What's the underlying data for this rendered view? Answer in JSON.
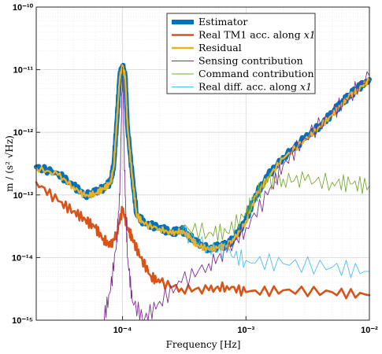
{
  "chart_data": {
    "type": "line",
    "xlabel": "Frequency [Hz]",
    "ylabel": "m / (s² √Hz)",
    "xscale": "log",
    "yscale": "log",
    "xlim": [
      2e-05,
      0.01
    ],
    "ylim": [
      1e-15,
      1e-10
    ],
    "x_tick_labels": [
      "10⁻⁴",
      "10⁻³",
      "10⁻²"
    ],
    "x_tick_values": [
      0.0001,
      0.001,
      0.01
    ],
    "y_tick_labels": [
      "10⁻¹⁵",
      "10⁻¹⁴",
      "10⁻¹³",
      "10⁻¹²",
      "10⁻¹¹",
      "10⁻¹⁰"
    ],
    "y_tick_values": [
      1e-15,
      1e-14,
      1e-13,
      1e-12,
      1e-11,
      1e-10
    ],
    "grid": true,
    "legend_position": "top-right",
    "series": [
      {
        "name": "Estimator",
        "color": "#0072BD",
        "x": [
          2e-05,
          3e-05,
          4e-05,
          5e-05,
          6e-05,
          7e-05,
          8e-05,
          8.5e-05,
          9e-05,
          9.5e-05,
          0.0001,
          0.000105,
          0.00011,
          0.00012,
          0.00013,
          0.00015,
          0.0002,
          0.00025,
          0.0003,
          0.00035,
          0.0004,
          0.0005,
          0.0006,
          0.0007,
          0.0008,
          0.001,
          0.0012,
          0.0015,
          0.002,
          0.003,
          0.004,
          0.005,
          0.006,
          0.007,
          0.008,
          0.01
        ],
        "y": [
          2.8e-13,
          2.2e-13,
          1.4e-13,
          1e-13,
          1.1e-13,
          1.3e-13,
          1.6e-13,
          3e-13,
          1.5e-12,
          8e-12,
          1.15e-11,
          8e-12,
          1.2e-12,
          2e-13,
          5e-14,
          3.5e-14,
          3e-14,
          2.5e-14,
          2.8e-14,
          2.2e-14,
          1.7e-14,
          1.4e-14,
          1.5e-14,
          1.6e-14,
          2e-14,
          4e-14,
          1e-13,
          2e-13,
          4e-13,
          8e-13,
          1.3e-12,
          2e-12,
          3e-12,
          4e-12,
          5e-12,
          7e-12
        ]
      },
      {
        "name": "Real TM1 acc. along x1",
        "color": "#D95319",
        "x": [
          2e-05,
          3e-05,
          4e-05,
          5e-05,
          6e-05,
          7e-05,
          8e-05,
          9e-05,
          0.0001,
          0.00011,
          0.00012,
          0.00014,
          0.00017,
          0.0002,
          0.0003,
          0.0005,
          0.0007,
          0.001,
          0.002,
          0.005,
          0.01
        ],
        "y": [
          1.6e-13,
          8e-14,
          5.5e-14,
          4e-14,
          3e-14,
          2e-14,
          1.5e-14,
          2.5e-14,
          6e-14,
          3e-14,
          2e-14,
          1e-14,
          5e-15,
          4e-15,
          3.2e-15,
          3e-15,
          3.5e-15,
          2.8e-15,
          3e-15,
          2.8e-15,
          2.5e-15
        ]
      },
      {
        "name": "Residual",
        "color": "#EDB120",
        "x": [
          2e-05,
          3e-05,
          4e-05,
          5e-05,
          6e-05,
          7e-05,
          8e-05,
          8.5e-05,
          9e-05,
          9.5e-05,
          0.0001,
          0.000105,
          0.00011,
          0.00012,
          0.00013,
          0.00015,
          0.0002,
          0.00025,
          0.0003,
          0.00035,
          0.0004,
          0.0005,
          0.0006,
          0.0007,
          0.0008,
          0.001,
          0.0012,
          0.0015,
          0.002,
          0.003,
          0.004,
          0.005,
          0.006,
          0.007,
          0.008,
          0.01
        ],
        "y": [
          2.7e-13,
          2.1e-13,
          1.35e-13,
          9.5e-14,
          1.05e-13,
          1.25e-13,
          1.55e-13,
          2.9e-13,
          1.45e-12,
          7.8e-12,
          1.1e-11,
          7.8e-12,
          1.15e-12,
          1.9e-13,
          4.8e-14,
          3.4e-14,
          2.9e-14,
          2.4e-14,
          2.7e-14,
          2.1e-14,
          1.6e-14,
          1.35e-14,
          1.45e-14,
          1.55e-14,
          1.9e-14,
          3.8e-14,
          9.5e-14,
          1.9e-13,
          3.8e-13,
          7.6e-13,
          1.25e-12,
          1.9e-12,
          2.9e-12,
          3.8e-12,
          4.8e-12,
          6.8e-12
        ]
      },
      {
        "name": "Sensing contribution",
        "color": "#7E2F8E",
        "x": [
          7e-05,
          8e-05,
          9e-05,
          9.5e-05,
          0.0001,
          0.000105,
          0.00011,
          0.00012,
          0.00015,
          0.0002,
          0.0003,
          0.0005,
          0.0007,
          0.001,
          0.0015,
          0.002,
          0.003,
          0.005,
          0.007,
          0.01
        ],
        "y": [
          1e-15,
          3e-15,
          2e-14,
          1e-13,
          1.1e-11,
          1e-13,
          1e-14,
          2e-15,
          1e-15,
          2e-15,
          4e-15,
          8e-15,
          1.2e-14,
          3e-14,
          1e-13,
          3e-13,
          8e-13,
          2e-12,
          4e-12,
          8e-12
        ]
      },
      {
        "name": "Command contribution",
        "color": "#77AC30",
        "x": [
          0.0003,
          0.0005,
          0.0007,
          0.001,
          0.0012,
          0.0015,
          0.002,
          0.003,
          0.005,
          0.007,
          0.01
        ],
        "y": [
          3e-14,
          2.5e-14,
          2.5e-14,
          5e-14,
          1e-13,
          1.6e-13,
          1.8e-13,
          1.7e-13,
          1.6e-13,
          1.5e-13,
          1.4e-13
        ]
      },
      {
        "name": "Real diff. acc. along x1",
        "color": "#4DBEEE",
        "x": [
          0.0003,
          0.0005,
          0.0007,
          0.001,
          0.002,
          0.005,
          0.01
        ],
        "y": [
          2.5e-14,
          1.5e-14,
          1.2e-14,
          9e-15,
          8e-15,
          7e-15,
          6e-15
        ]
      }
    ]
  },
  "legend": {
    "items": [
      {
        "text": "Estimator",
        "sub": ""
      },
      {
        "text": "Real TM1 acc. along ",
        "sub": "x1"
      },
      {
        "text": "Residual",
        "sub": ""
      },
      {
        "text": "Sensing contribution",
        "sub": ""
      },
      {
        "text": "Command contribution",
        "sub": ""
      },
      {
        "text": "Real diff. acc. along ",
        "sub": "x1"
      }
    ]
  }
}
